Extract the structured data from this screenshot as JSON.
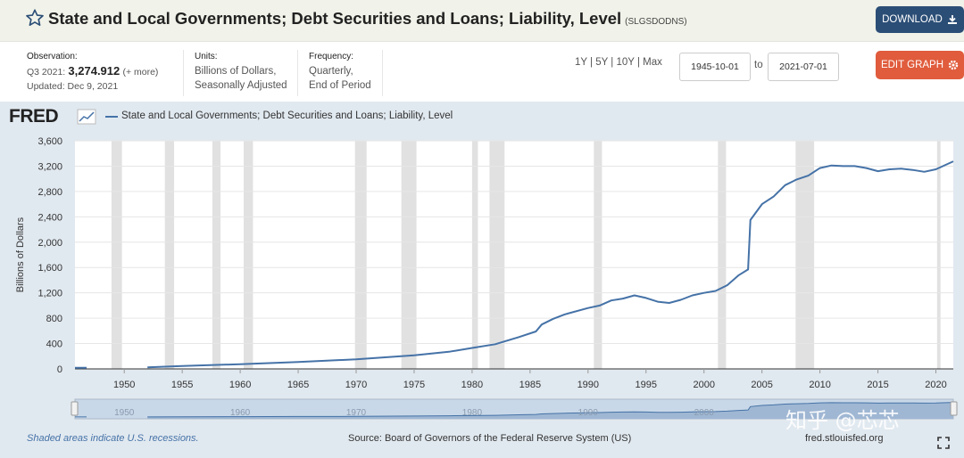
{
  "header": {
    "title": "State and Local Governments; Debt Securities and Loans; Liability, Level",
    "series_id": "(SLGSDODNS)",
    "download_label": "DOWNLOAD"
  },
  "meta": {
    "observation_label": "Observation:",
    "observation_period": "Q3 2021:",
    "observation_value": "3,274.912",
    "observation_more": "(+ more)",
    "updated": "Updated: Dec 9, 2021",
    "units_label": "Units:",
    "units_line1": "Billions of Dollars,",
    "units_line2": "Seasonally Adjusted",
    "frequency_label": "Frequency:",
    "frequency_line1": "Quarterly,",
    "frequency_line2": "End of Period"
  },
  "controls": {
    "ranges": [
      "1Y",
      "5Y",
      "10Y",
      "Max"
    ],
    "start_date": "1945-10-01",
    "to_label": "to",
    "end_date": "2021-07-01",
    "edit_label": "EDIT GRAPH"
  },
  "logo": "FRED",
  "footer": {
    "recession_note": "Shaded areas indicate U.S. recessions.",
    "source": "Source: Board of Governors of the Federal Reserve System (US)",
    "url": "fred.stlouisfed.org"
  },
  "watermark": "知乎 @芯芯",
  "colors": {
    "series": "#4572a7",
    "recession": "#e1e1e1",
    "download_btn": "#2b4e76",
    "edit_btn": "#e05c3d"
  },
  "chart_data": {
    "type": "line",
    "title": "",
    "xlabel": "",
    "ylabel": "Billions of Dollars",
    "xlim": [
      1945.75,
      2021.5
    ],
    "ylim": [
      0,
      3600
    ],
    "yticks": [
      0,
      400,
      800,
      1200,
      1600,
      2000,
      2400,
      2800,
      3200,
      3600
    ],
    "ytick_labels": [
      "0",
      "400",
      "800",
      "1,200",
      "1,600",
      "2,000",
      "2,400",
      "2,800",
      "3,200",
      "3,600"
    ],
    "xticks": [
      1950,
      1955,
      1960,
      1965,
      1970,
      1975,
      1980,
      1985,
      1990,
      1995,
      2000,
      2005,
      2010,
      2015,
      2020
    ],
    "navigator_ticks": [
      1950,
      1960,
      1970,
      1980,
      1990,
      2000
    ],
    "grid": true,
    "legend": "top-left",
    "recessions": [
      [
        1948.9,
        1949.8
      ],
      [
        1953.5,
        1954.3
      ],
      [
        1957.6,
        1958.3
      ],
      [
        1960.3,
        1961.1
      ],
      [
        1969.9,
        1970.9
      ],
      [
        1973.9,
        1975.2
      ],
      [
        1980.0,
        1980.5
      ],
      [
        1981.5,
        1982.8
      ],
      [
        1990.5,
        1991.2
      ],
      [
        2001.2,
        2001.9
      ],
      [
        2007.9,
        2009.5
      ],
      [
        2020.1,
        2020.4
      ]
    ],
    "series": [
      {
        "name": "State and Local Governments; Debt Securities and Loans; Liability, Level",
        "x": [
          1945.75,
          1946.75,
          1946.8,
          1951.9,
          1952,
          1955,
          1960,
          1965,
          1970,
          1975,
          1978,
          1980,
          1982,
          1984,
          1985.5,
          1986,
          1987,
          1988,
          1990,
          1991,
          1992,
          1993,
          1994,
          1995,
          1996,
          1997,
          1998,
          1999,
          2000,
          2001,
          2002,
          2003,
          2003.8,
          2004,
          2005,
          2006,
          2007,
          2008,
          2009,
          2010,
          2011,
          2012,
          2013,
          2014,
          2015,
          2016,
          2017,
          2018,
          2019,
          2020,
          2021.5
        ],
        "values": [
          18,
          18,
          null,
          null,
          25,
          45,
          75,
          110,
          150,
          215,
          270,
          330,
          390,
          500,
          590,
          700,
          790,
          860,
          960,
          1000,
          1080,
          1110,
          1160,
          1120,
          1060,
          1040,
          1090,
          1160,
          1200,
          1230,
          1320,
          1480,
          1570,
          2350,
          2600,
          2720,
          2900,
          2990,
          3050,
          3170,
          3210,
          3200,
          3200,
          3170,
          3120,
          3150,
          3160,
          3140,
          3110,
          3150,
          3275
        ]
      }
    ]
  }
}
